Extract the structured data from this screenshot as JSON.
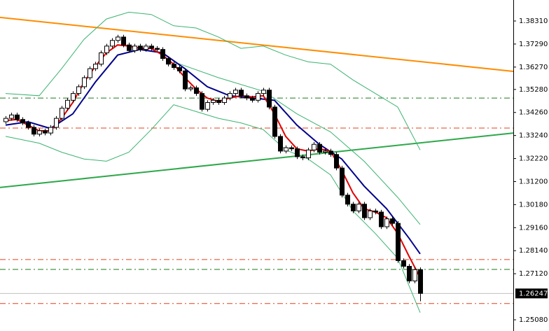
{
  "chart_data": {
    "type": "candlestick",
    "xlim": [
      -1,
      90.625
    ],
    "ylim": [
      1.24584,
      1.3924
    ],
    "yticks": [
      {
        "value": 1.3831,
        "label": "1.38310"
      },
      {
        "value": 1.3729,
        "label": "1.37290"
      },
      {
        "value": 1.3627,
        "label": "1.36270"
      },
      {
        "value": 1.3528,
        "label": "1.35280"
      },
      {
        "value": 1.3426,
        "label": "1.34260"
      },
      {
        "value": 1.3324,
        "label": "1.33240"
      },
      {
        "value": 1.3222,
        "label": "1.32220"
      },
      {
        "value": 1.312,
        "label": "1.31200"
      },
      {
        "value": 1.3018,
        "label": "1.30180"
      },
      {
        "value": 1.2916,
        "label": "1.29160"
      },
      {
        "value": 1.2814,
        "label": "1.28140"
      },
      {
        "value": 1.2712,
        "label": "1.27120"
      },
      {
        "value": 1.2508,
        "label": "1.25080"
      }
    ],
    "current_price": {
      "value": 1.26247,
      "label": "1.26247"
    },
    "up_color": "#ffffff",
    "down_color": "#000000",
    "wick_color": "#000000",
    "open": [
      1.3385,
      1.34,
      1.3415,
      1.3395,
      1.338,
      1.336,
      1.333,
      1.3345,
      1.3335,
      1.336,
      1.34,
      1.3445,
      1.348,
      1.351,
      1.354,
      1.358,
      1.362,
      1.364,
      1.369,
      1.372,
      1.3745,
      1.376,
      1.3725,
      1.37,
      1.372,
      1.3705,
      1.372,
      1.371,
      1.3705,
      1.3665,
      1.364,
      1.3625,
      1.361,
      1.353,
      1.3535,
      1.351,
      1.344,
      1.347,
      1.348,
      1.347,
      1.349,
      1.351,
      1.3525,
      1.35,
      1.349,
      1.348,
      1.351,
      1.3525,
      1.345,
      1.332,
      1.3255,
      1.327,
      1.3265,
      1.323,
      1.3225,
      1.326,
      1.3285,
      1.325,
      1.3255,
      1.324,
      1.318,
      1.306,
      1.302,
      1.299,
      1.302,
      1.296,
      1.299,
      1.2985,
      1.292,
      1.2955,
      1.2935,
      1.277,
      1.2745,
      1.268,
      1.273
    ],
    "high": [
      1.341,
      1.3425,
      1.3425,
      1.3405,
      1.339,
      1.337,
      1.3355,
      1.3355,
      1.337,
      1.341,
      1.3455,
      1.349,
      1.352,
      1.355,
      1.359,
      1.363,
      1.365,
      1.37,
      1.373,
      1.3755,
      1.377,
      1.377,
      1.3735,
      1.373,
      1.373,
      1.373,
      1.373,
      1.372,
      1.3715,
      1.3675,
      1.365,
      1.3635,
      1.362,
      1.3545,
      1.3545,
      1.352,
      1.348,
      1.349,
      1.349,
      1.35,
      1.352,
      1.3535,
      1.3535,
      1.351,
      1.35,
      1.352,
      1.3535,
      1.3535,
      1.346,
      1.333,
      1.328,
      1.328,
      1.3275,
      1.324,
      1.327,
      1.3295,
      1.3295,
      1.3265,
      1.3265,
      1.325,
      1.319,
      1.307,
      1.303,
      1.303,
      1.303,
      1.3,
      1.3,
      1.2995,
      1.2965,
      1.2965,
      1.2945,
      1.278,
      1.2755,
      1.274,
      1.274
    ],
    "low": [
      1.3375,
      1.339,
      1.3385,
      1.337,
      1.335,
      1.332,
      1.332,
      1.3325,
      1.3325,
      1.335,
      1.339,
      1.3435,
      1.347,
      1.35,
      1.353,
      1.357,
      1.361,
      1.363,
      1.368,
      1.371,
      1.3735,
      1.3715,
      1.369,
      1.369,
      1.3695,
      1.3695,
      1.37,
      1.3695,
      1.3655,
      1.363,
      1.3615,
      1.36,
      1.352,
      1.352,
      1.35,
      1.343,
      1.343,
      1.346,
      1.346,
      1.346,
      1.348,
      1.35,
      1.349,
      1.348,
      1.347,
      1.347,
      1.35,
      1.344,
      1.331,
      1.3245,
      1.3245,
      1.3255,
      1.322,
      1.3215,
      1.3215,
      1.325,
      1.324,
      1.324,
      1.323,
      1.317,
      1.305,
      1.301,
      1.298,
      1.298,
      1.295,
      1.295,
      1.2975,
      1.291,
      1.291,
      1.2925,
      1.276,
      1.2735,
      1.267,
      1.267,
      1.259
    ],
    "close": [
      1.34,
      1.3415,
      1.3395,
      1.338,
      1.336,
      1.333,
      1.3345,
      1.3335,
      1.336,
      1.34,
      1.3445,
      1.348,
      1.351,
      1.354,
      1.358,
      1.362,
      1.364,
      1.369,
      1.372,
      1.3745,
      1.376,
      1.3725,
      1.37,
      1.372,
      1.3705,
      1.372,
      1.371,
      1.3705,
      1.3665,
      1.364,
      1.3625,
      1.361,
      1.353,
      1.3535,
      1.351,
      1.344,
      1.347,
      1.348,
      1.347,
      1.349,
      1.351,
      1.3525,
      1.35,
      1.349,
      1.348,
      1.351,
      1.3525,
      1.345,
      1.332,
      1.3255,
      1.327,
      1.3265,
      1.323,
      1.3225,
      1.326,
      1.3285,
      1.325,
      1.3255,
      1.324,
      1.318,
      1.306,
      1.302,
      1.299,
      1.302,
      1.296,
      1.299,
      1.2985,
      1.292,
      1.2955,
      1.2935,
      1.277,
      1.2745,
      1.268,
      1.273,
      1.2625
    ],
    "lines": [
      {
        "color": "#ff8c00",
        "x": [
          -1,
          90.625
        ],
        "values": [
          1.3847,
          1.3608
        ]
      },
      {
        "color": "#2ea84a",
        "x": [
          -1,
          90.625
        ],
        "values": [
          1.3094,
          1.3335
        ]
      },
      {
        "color": "#3cb371",
        "x": [
          0,
          6,
          10,
          14,
          18,
          22,
          26,
          30,
          34,
          38,
          42,
          46,
          50,
          54,
          58,
          62,
          66,
          70,
          74
        ],
        "values": [
          1.351,
          1.35,
          1.362,
          1.375,
          1.384,
          1.387,
          1.386,
          1.381,
          1.38,
          1.376,
          1.371,
          1.372,
          1.368,
          1.365,
          1.364,
          1.357,
          1.351,
          1.345,
          1.326
        ]
      },
      {
        "color": "#3cb371",
        "x": [
          30,
          38,
          46,
          52,
          58,
          64,
          70,
          74
        ],
        "values": [
          1.365,
          1.358,
          1.352,
          1.342,
          1.334,
          1.321,
          1.305,
          1.293
        ]
      },
      {
        "color": "#3cb371",
        "x": [
          0,
          6,
          10,
          14,
          18,
          22,
          26,
          30,
          34,
          38,
          42,
          46,
          50,
          54,
          58,
          62,
          66,
          70,
          74
        ],
        "values": [
          1.332,
          1.329,
          1.325,
          1.322,
          1.321,
          1.325,
          1.335,
          1.346,
          1.343,
          1.34,
          1.338,
          1.335,
          1.326,
          1.322,
          1.315,
          1.299,
          1.289,
          1.278,
          1.254
        ]
      },
      {
        "color": "#00008b",
        "x": [
          0,
          4,
          8,
          12,
          16,
          20,
          24,
          28,
          32,
          36,
          40,
          44,
          48,
          52,
          56,
          60,
          64,
          68,
          72,
          74
        ],
        "values": [
          1.337,
          1.3385,
          1.3355,
          1.342,
          1.356,
          1.368,
          1.3705,
          1.369,
          1.362,
          1.354,
          1.35,
          1.349,
          1.348,
          1.337,
          1.3285,
          1.322,
          1.31,
          1.3,
          1.287,
          1.28
        ]
      },
      {
        "color": "#e00000",
        "x": [
          0,
          2,
          4,
          6,
          8,
          10,
          12,
          14,
          16,
          18,
          20,
          22,
          24,
          26,
          28,
          30,
          32,
          34,
          36,
          38,
          40,
          42,
          44,
          46,
          48,
          50,
          52,
          54,
          56,
          58,
          60,
          62,
          64,
          66,
          68,
          70,
          72,
          74
        ],
        "values": [
          1.339,
          1.3395,
          1.337,
          1.3345,
          1.3345,
          1.34,
          1.347,
          1.356,
          1.363,
          1.369,
          1.3725,
          1.372,
          1.371,
          1.371,
          1.368,
          1.364,
          1.358,
          1.353,
          1.349,
          1.3475,
          1.349,
          1.35,
          1.3495,
          1.35,
          1.342,
          1.332,
          1.3265,
          1.3255,
          1.3265,
          1.3255,
          1.317,
          1.307,
          1.3,
          1.2985,
          1.296,
          1.289,
          1.279,
          1.2695
        ]
      }
    ],
    "levels": [
      {
        "value": 1.349,
        "color": "#1a7a1a"
      },
      {
        "value": 1.3357,
        "color": "#e0401a"
      },
      {
        "value": 1.2775,
        "color": "#e0401a"
      },
      {
        "value": 1.2731,
        "color": "#1a7a1a"
      },
      {
        "value": 1.258,
        "color": "#e0401a"
      }
    ]
  }
}
